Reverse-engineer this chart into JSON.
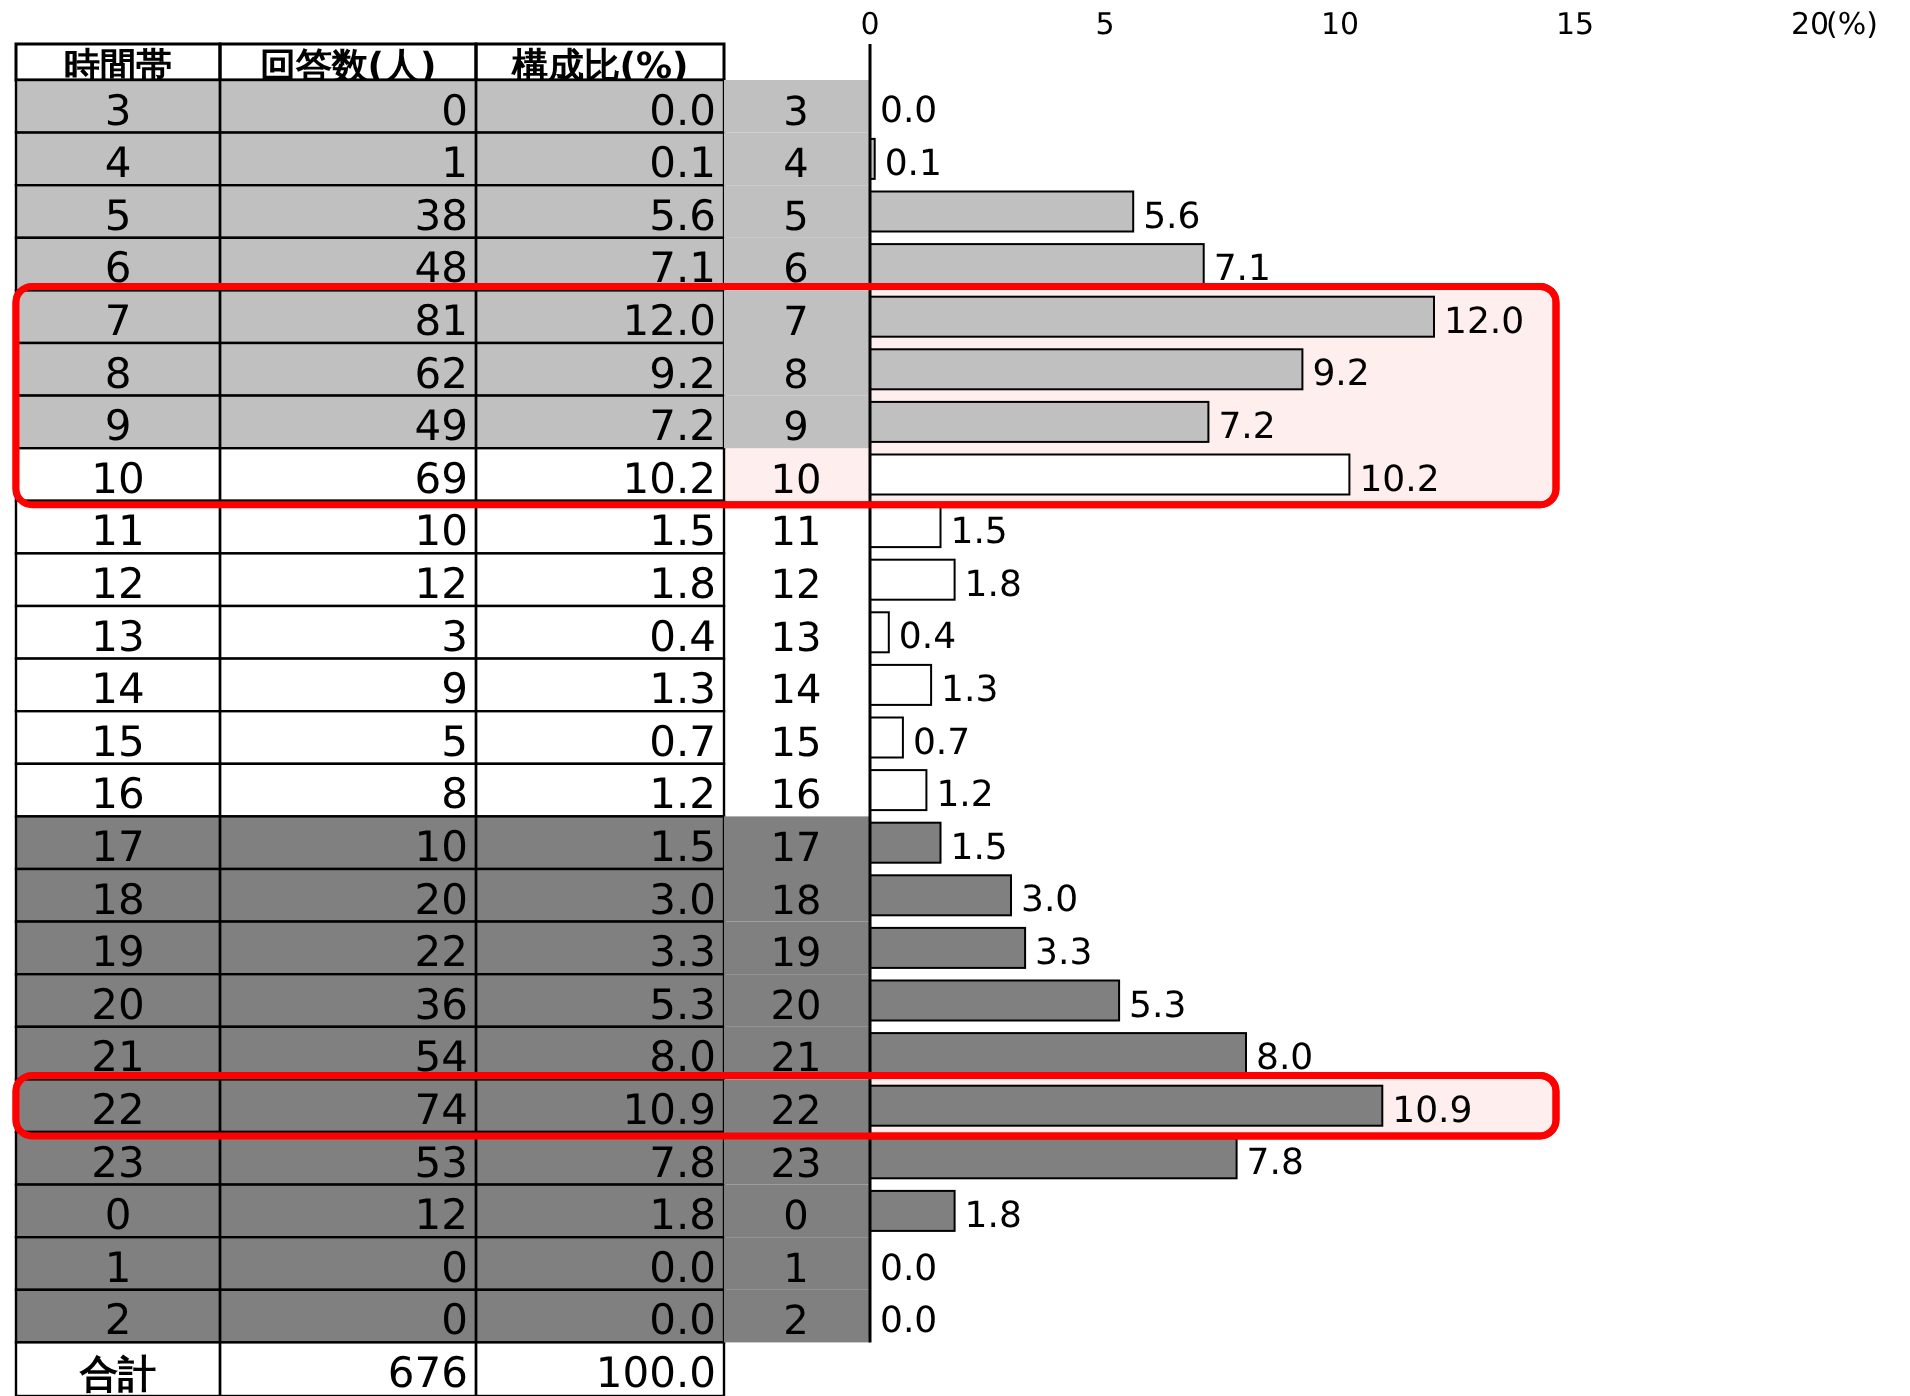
{
  "chart_data": [
    {
      "type": "other",
      "annotations": [
        "時間帯",
        "回答数(人)",
        "構成比(%)",
        "3",
        "0",
        "0.0",
        "4",
        "1",
        "0.1",
        "5",
        "38",
        "5.6",
        "6",
        "48",
        "7.1",
        "7",
        "81",
        "12.0",
        "8",
        "62",
        "9.2",
        "9",
        "49",
        "7.2",
        "10",
        "69",
        "10.2",
        "11",
        "10",
        "1.5",
        "12",
        "12",
        "1.8",
        "13",
        "3",
        "0.4",
        "14",
        "9",
        "1.3",
        "15",
        "5",
        "0.7",
        "16",
        "8",
        "1.2",
        "17",
        "10",
        "1.5",
        "18",
        "20",
        "3.0",
        "19",
        "22",
        "3.3",
        "20",
        "36",
        "5.3",
        "21",
        "54",
        "8.0",
        "22",
        "74",
        "10.9",
        "23",
        "53",
        "7.8",
        "0",
        "12",
        "1.8",
        "1",
        "0",
        "0.0",
        "2",
        "0",
        "0.0",
        "合計",
        "676",
        "100.0"
      ]
    },
    {
      "type": "bar",
      "orientation": "horizontal",
      "categories": [
        "3",
        "4",
        "5",
        "6",
        "7",
        "8",
        "9",
        "10",
        "11",
        "12",
        "13",
        "14",
        "15",
        "16",
        "17",
        "18",
        "19",
        "20",
        "21",
        "22",
        "23",
        "0",
        "1",
        "2"
      ],
      "values": [
        0.0,
        0.1,
        5.6,
        7.1,
        12.0,
        9.2,
        7.2,
        10.2,
        1.5,
        1.8,
        0.4,
        1.3,
        0.7,
        1.2,
        1.5,
        3.0,
        3.3,
        5.3,
        8.0,
        10.9,
        7.8,
        1.8,
        0.0,
        0.0
      ],
      "value_labels": [
        "0.0",
        "0.1",
        "5.6",
        "7.1",
        "12.0",
        "9.2",
        "7.2",
        "10.2",
        "1.5",
        "1.8",
        "0.4",
        "1.3",
        "0.7",
        "1.2",
        "1.5",
        "3.0",
        "3.3",
        "5.3",
        "8.0",
        "10.9",
        "7.8",
        "1.8",
        "0.0",
        "0.0"
      ],
      "colors": [
        "#c0c0c0",
        "#c0c0c0",
        "#c0c0c0",
        "#c0c0c0",
        "#c0c0c0",
        "#c0c0c0",
        "#c0c0c0",
        "#ffffff",
        "#ffffff",
        "#ffffff",
        "#ffffff",
        "#ffffff",
        "#ffffff",
        "#ffffff",
        "#808080",
        "#808080",
        "#808080",
        "#808080",
        "#808080",
        "#808080",
        "#808080",
        "#808080",
        "#808080",
        "#808080"
      ],
      "xlim": [
        0,
        20
      ],
      "xticks": [
        0,
        5,
        10,
        15,
        20
      ],
      "xlabel": "(%)",
      "bands": [
        {
          "axis": "y",
          "from": "7",
          "to": "10",
          "color": "#ff0000"
        },
        {
          "axis": "y",
          "from": "22",
          "to": "22",
          "color": "#ff0000"
        }
      ]
    }
  ]
}
